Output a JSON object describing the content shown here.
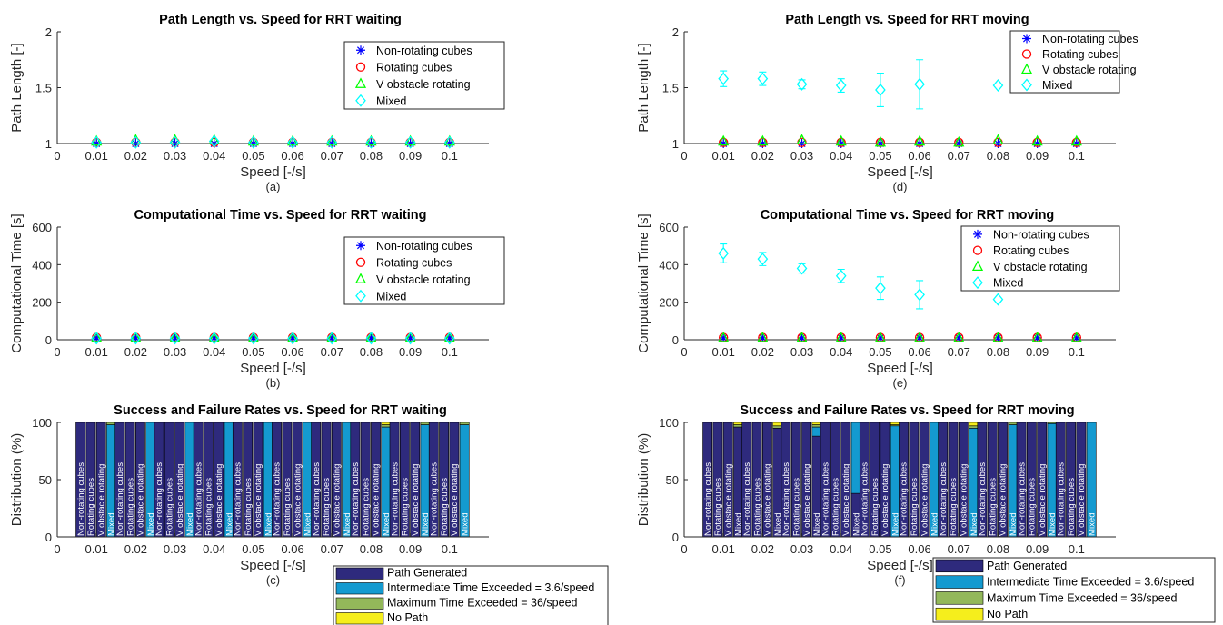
{
  "chart_data": [
    {
      "id": "a",
      "type": "scatter",
      "title": "Path Length vs. Speed for RRT waiting",
      "xlabel": "Speed [-/s]",
      "ylabel": "Path Length [-]",
      "caption": "(a)",
      "xlim": [
        0,
        0.11
      ],
      "xticks": [
        "0",
        "0.01",
        "0.02",
        "0.03",
        "0.04",
        "0.05",
        "0.06",
        "0.07",
        "0.08",
        "0.09",
        "0.1"
      ],
      "ylim": [
        1,
        2
      ],
      "yticks": [
        "1",
        "1.5",
        "2"
      ],
      "legend_position": "top-right",
      "x": [
        0.01,
        0.02,
        0.03,
        0.04,
        0.05,
        0.06,
        0.07,
        0.08,
        0.09,
        0.1
      ],
      "series": [
        {
          "name": "Non-rotating cubes",
          "marker": "star",
          "color": "#0000ff",
          "values": [
            1.0,
            1.0,
            1.0,
            1.0,
            1.0,
            1.0,
            1.0,
            1.0,
            1.0,
            1.0
          ]
        },
        {
          "name": "Rotating cubes",
          "marker": "circle",
          "color": "#ff0000",
          "values": [
            1.01,
            1.01,
            1.01,
            1.01,
            1.01,
            1.01,
            1.01,
            1.01,
            1.01,
            1.01
          ]
        },
        {
          "name": "V obstacle rotating",
          "marker": "triangle",
          "color": "#00ff00",
          "values": [
            1.02,
            1.03,
            1.03,
            1.03,
            1.02,
            1.02,
            1.02,
            1.02,
            1.02,
            1.02
          ]
        },
        {
          "name": "Mixed",
          "marker": "diamond",
          "color": "#00ffff",
          "values": [
            1.01,
            1.01,
            1.01,
            1.02,
            1.01,
            1.01,
            1.01,
            1.01,
            1.01,
            1.01
          ]
        }
      ]
    },
    {
      "id": "d",
      "type": "scatter",
      "title": "Path Length vs. Speed for RRT moving",
      "xlabel": "Speed [-/s]",
      "ylabel": "Path Length [-]",
      "caption": "(d)",
      "xlim": [
        0,
        0.11
      ],
      "xticks": [
        "0",
        "0.01",
        "0.02",
        "0.03",
        "0.04",
        "0.05",
        "0.06",
        "0.07",
        "0.08",
        "0.09",
        "0.1"
      ],
      "ylim": [
        1,
        2
      ],
      "yticks": [
        "1",
        "1.5",
        "2"
      ],
      "legend_position": "top-right",
      "x": [
        0.01,
        0.02,
        0.03,
        0.04,
        0.05,
        0.06,
        0.07,
        0.08,
        0.09,
        0.1
      ],
      "series": [
        {
          "name": "Non-rotating cubes",
          "marker": "star",
          "color": "#0000ff",
          "values": [
            1.0,
            1.0,
            1.0,
            1.0,
            1.0,
            1.0,
            1.0,
            1.0,
            1.0,
            1.0
          ]
        },
        {
          "name": "Rotating cubes",
          "marker": "circle",
          "color": "#ff0000",
          "values": [
            1.01,
            1.01,
            1.01,
            1.01,
            1.01,
            1.01,
            1.01,
            1.01,
            1.01,
            1.01
          ]
        },
        {
          "name": "V obstacle rotating",
          "marker": "triangle",
          "color": "#00ff00",
          "values": [
            1.02,
            1.02,
            1.03,
            1.02,
            1.01,
            1.02,
            1.01,
            1.03,
            1.02,
            1.02
          ]
        },
        {
          "name": "Mixed",
          "marker": "diamond",
          "color": "#00ffff",
          "values": [
            1.58,
            1.58,
            1.53,
            1.52,
            1.48,
            1.53,
            null,
            1.52,
            null,
            null
          ],
          "error": [
            0.07,
            0.06,
            0.04,
            0.06,
            0.15,
            0.22,
            null,
            null,
            null,
            null
          ]
        }
      ]
    },
    {
      "id": "b",
      "type": "scatter",
      "title": "Computational Time vs. Speed for RRT waiting",
      "xlabel": "Speed [-/s]",
      "ylabel": "Computational Time [s]",
      "caption": "(b)",
      "xlim": [
        0,
        0.11
      ],
      "xticks": [
        "0",
        "0.01",
        "0.02",
        "0.03",
        "0.04",
        "0.05",
        "0.06",
        "0.07",
        "0.08",
        "0.09",
        "0.1"
      ],
      "ylim": [
        0,
        600
      ],
      "yticks": [
        "0",
        "200",
        "400",
        "600"
      ],
      "legend_position": "top-right",
      "x": [
        0.01,
        0.02,
        0.03,
        0.04,
        0.05,
        0.06,
        0.07,
        0.08,
        0.09,
        0.1
      ],
      "series": [
        {
          "name": "Non-rotating cubes",
          "marker": "star",
          "color": "#0000ff",
          "values": [
            10,
            10,
            10,
            10,
            10,
            10,
            10,
            10,
            10,
            10
          ]
        },
        {
          "name": "Rotating cubes",
          "marker": "circle",
          "color": "#ff0000",
          "values": [
            12,
            12,
            12,
            12,
            12,
            12,
            12,
            12,
            12,
            12
          ]
        },
        {
          "name": "V obstacle rotating",
          "marker": "triangle",
          "color": "#00ff00",
          "values": [
            10,
            10,
            10,
            10,
            10,
            10,
            10,
            10,
            10,
            10
          ]
        },
        {
          "name": "Mixed",
          "marker": "diamond",
          "color": "#00ffff",
          "values": [
            8,
            8,
            8,
            8,
            8,
            8,
            8,
            8,
            8,
            8
          ]
        }
      ]
    },
    {
      "id": "e",
      "type": "scatter",
      "title": "Computational Time vs. Speed for RRT moving",
      "xlabel": "Speed [-/s]",
      "ylabel": "Computational Time [s]",
      "caption": "(e)",
      "xlim": [
        0,
        0.11
      ],
      "xticks": [
        "0",
        "0.01",
        "0.02",
        "0.03",
        "0.04",
        "0.05",
        "0.06",
        "0.07",
        "0.08",
        "0.09",
        "0.1"
      ],
      "ylim": [
        0,
        600
      ],
      "yticks": [
        "0",
        "200",
        "400",
        "600"
      ],
      "legend_position": "top-right",
      "x": [
        0.01,
        0.02,
        0.03,
        0.04,
        0.05,
        0.06,
        0.07,
        0.08,
        0.09,
        0.1
      ],
      "series": [
        {
          "name": "Non-rotating cubes",
          "marker": "star",
          "color": "#0000ff",
          "values": [
            10,
            10,
            10,
            10,
            10,
            10,
            10,
            10,
            10,
            10
          ]
        },
        {
          "name": "Rotating cubes",
          "marker": "circle",
          "color": "#ff0000",
          "values": [
            12,
            12,
            12,
            12,
            12,
            12,
            12,
            12,
            12,
            12
          ]
        },
        {
          "name": "V obstacle rotating",
          "marker": "triangle",
          "color": "#00ff00",
          "values": [
            10,
            10,
            10,
            10,
            10,
            10,
            10,
            10,
            10,
            10
          ]
        },
        {
          "name": "Mixed",
          "marker": "diamond",
          "color": "#00ffff",
          "values": [
            460,
            430,
            380,
            340,
            275,
            240,
            null,
            215,
            null,
            null
          ],
          "error": [
            50,
            35,
            25,
            35,
            60,
            75,
            null,
            null,
            null,
            null
          ]
        }
      ]
    },
    {
      "id": "c",
      "type": "bar",
      "stacked": true,
      "title": "Success and Failure Rates vs. Speed for RRT waiting",
      "xlabel": "Speed [-/s]",
      "ylabel": "Distribution (%)",
      "caption": "(c)",
      "xlim": [
        0,
        0.11
      ],
      "xticks": [
        "0",
        "0.01",
        "0.02",
        "0.03",
        "0.04",
        "0.05",
        "0.06",
        "0.07",
        "0.08",
        "0.09",
        "0.1"
      ],
      "ylim": [
        0,
        100
      ],
      "yticks": [
        "0",
        "50",
        "100"
      ],
      "legend_position": "bottom-right",
      "groups": [
        0.01,
        0.02,
        0.03,
        0.04,
        0.05,
        0.06,
        0.07,
        0.08,
        0.09,
        0.1
      ],
      "bar_labels": [
        "Non-rotating cubes",
        "Rotating cubes",
        "V obstacle rotating",
        "Mixed"
      ],
      "stack_names": [
        "Path Generated",
        "Intermediate Time Exceeded = 3.6/speed",
        "Maximum Time Exceeded = 36/speed",
        "No Path"
      ],
      "stack_colors": [
        "#2e2a7d",
        "#149ad0",
        "#93b85a",
        "#f5ee1c"
      ],
      "data": [
        [
          [
            100,
            0,
            0,
            0
          ],
          [
            100,
            0,
            0,
            0
          ],
          [
            100,
            0,
            0,
            0
          ],
          [
            0,
            98,
            2,
            0
          ]
        ],
        [
          [
            100,
            0,
            0,
            0
          ],
          [
            100,
            0,
            0,
            0
          ],
          [
            100,
            0,
            0,
            0
          ],
          [
            0,
            100,
            0,
            0
          ]
        ],
        [
          [
            100,
            0,
            0,
            0
          ],
          [
            100,
            0,
            0,
            0
          ],
          [
            100,
            0,
            0,
            0
          ],
          [
            0,
            100,
            0,
            0
          ]
        ],
        [
          [
            100,
            0,
            0,
            0
          ],
          [
            100,
            0,
            0,
            0
          ],
          [
            100,
            0,
            0,
            0
          ],
          [
            0,
            100,
            0,
            0
          ]
        ],
        [
          [
            100,
            0,
            0,
            0
          ],
          [
            100,
            0,
            0,
            0
          ],
          [
            100,
            0,
            0,
            0
          ],
          [
            0,
            100,
            0,
            0
          ]
        ],
        [
          [
            100,
            0,
            0,
            0
          ],
          [
            100,
            0,
            0,
            0
          ],
          [
            100,
            0,
            0,
            0
          ],
          [
            0,
            100,
            0,
            0
          ]
        ],
        [
          [
            100,
            0,
            0,
            0
          ],
          [
            100,
            0,
            0,
            0
          ],
          [
            100,
            0,
            0,
            0
          ],
          [
            0,
            100,
            0,
            0
          ]
        ],
        [
          [
            100,
            0,
            0,
            0
          ],
          [
            100,
            0,
            0,
            0
          ],
          [
            100,
            0,
            0,
            0
          ],
          [
            0,
            96,
            2,
            2
          ]
        ],
        [
          [
            100,
            0,
            0,
            0
          ],
          [
            100,
            0,
            0,
            0
          ],
          [
            100,
            0,
            0,
            0
          ],
          [
            0,
            98,
            2,
            0
          ]
        ],
        [
          [
            100,
            0,
            0,
            0
          ],
          [
            100,
            0,
            0,
            0
          ],
          [
            100,
            0,
            0,
            0
          ],
          [
            0,
            98,
            2,
            0
          ]
        ]
      ]
    },
    {
      "id": "f",
      "type": "bar",
      "stacked": true,
      "title": "Success and Failure Rates vs. Speed for RRT moving",
      "xlabel": "Speed [-/s]",
      "ylabel": "Distribution (%)",
      "caption": "(f)",
      "xlim": [
        0,
        0.11
      ],
      "xticks": [
        "0",
        "0.01",
        "0.02",
        "0.03",
        "0.04",
        "0.05",
        "0.06",
        "0.07",
        "0.08",
        "0.09",
        "0.1"
      ],
      "ylim": [
        0,
        100
      ],
      "yticks": [
        "0",
        "50",
        "100"
      ],
      "legend_position": "bottom-right",
      "groups": [
        0.01,
        0.02,
        0.03,
        0.04,
        0.05,
        0.06,
        0.07,
        0.08,
        0.09,
        0.1
      ],
      "bar_labels": [
        "Non-rotating cubes",
        "Rotating cubes",
        "V obstacle rotating",
        "Mixed"
      ],
      "stack_names": [
        "Path Generated",
        "Intermediate Time Exceeded = 3.6/speed",
        "Maximum Time Exceeded = 36/speed",
        "No Path"
      ],
      "stack_colors": [
        "#2e2a7d",
        "#149ad0",
        "#93b85a",
        "#f5ee1c"
      ],
      "data": [
        [
          [
            100,
            0,
            0,
            0
          ],
          [
            100,
            0,
            0,
            0
          ],
          [
            100,
            0,
            0,
            0
          ],
          [
            96,
            0,
            2,
            2
          ]
        ],
        [
          [
            100,
            0,
            0,
            0
          ],
          [
            100,
            0,
            0,
            0
          ],
          [
            100,
            0,
            0,
            0
          ],
          [
            95,
            0,
            2,
            3
          ]
        ],
        [
          [
            100,
            0,
            0,
            0
          ],
          [
            100,
            0,
            0,
            0
          ],
          [
            100,
            0,
            0,
            0
          ],
          [
            88,
            8,
            2,
            2
          ]
        ],
        [
          [
            100,
            0,
            0,
            0
          ],
          [
            100,
            0,
            0,
            0
          ],
          [
            100,
            0,
            0,
            0
          ],
          [
            38,
            62,
            0,
            0
          ]
        ],
        [
          [
            100,
            0,
            0,
            0
          ],
          [
            100,
            0,
            0,
            0
          ],
          [
            100,
            0,
            0,
            0
          ],
          [
            0,
            97,
            1,
            2
          ]
        ],
        [
          [
            100,
            0,
            0,
            0
          ],
          [
            100,
            0,
            0,
            0
          ],
          [
            100,
            0,
            0,
            0
          ],
          [
            0,
            100,
            0,
            0
          ]
        ],
        [
          [
            100,
            0,
            0,
            0
          ],
          [
            100,
            0,
            0,
            0
          ],
          [
            100,
            0,
            0,
            0
          ],
          [
            0,
            95,
            2,
            3
          ]
        ],
        [
          [
            100,
            0,
            0,
            0
          ],
          [
            100,
            0,
            0,
            0
          ],
          [
            100,
            0,
            0,
            0
          ],
          [
            0,
            98,
            2,
            0
          ]
        ],
        [
          [
            100,
            0,
            0,
            0
          ],
          [
            100,
            0,
            0,
            0
          ],
          [
            100,
            0,
            0,
            0
          ],
          [
            0,
            99,
            1,
            0
          ]
        ],
        [
          [
            100,
            0,
            0,
            0
          ],
          [
            100,
            0,
            0,
            0
          ],
          [
            100,
            0,
            0,
            0
          ],
          [
            0,
            100,
            0,
            0
          ]
        ]
      ]
    }
  ]
}
